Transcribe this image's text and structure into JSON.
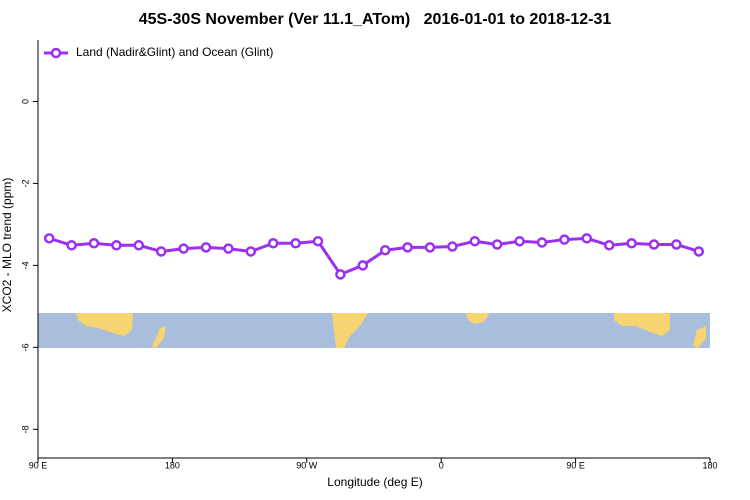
{
  "chart_data": {
    "type": "line",
    "title": "45S-30S November (Ver 11.1_ATom)   2016-01-01 to 2018-12-31",
    "xlabel": "Longitude (deg E)",
    "ylabel": "XCO2 - MLO trend (ppm)",
    "x": [
      97.5,
      112.5,
      127.5,
      142.5,
      157.5,
      172.5,
      187.5,
      202.5,
      217.5,
      232.5,
      247.5,
      262.5,
      277.5,
      292.5,
      307.5,
      322.5,
      337.5,
      352.5,
      367.5,
      382.5,
      397.5,
      412.5,
      427.5,
      442.5,
      457.5,
      472.5,
      487.5,
      502.5,
      517.5,
      532.5
    ],
    "series": [
      {
        "name": "Land (Nadir&Glint) and Ocean (Glint)",
        "color": "#9b30f0",
        "values": [
          -3.34,
          -3.51,
          -3.46,
          -3.51,
          -3.51,
          -3.66,
          -3.59,
          -3.56,
          -3.59,
          -3.66,
          -3.46,
          -3.46,
          -3.41,
          -4.22,
          -4.0,
          -3.63,
          -3.56,
          -3.56,
          -3.54,
          -3.41,
          -3.49,
          -3.41,
          -3.44,
          -3.37,
          -3.34,
          -3.51,
          -3.46,
          -3.49,
          -3.49,
          -3.66
        ]
      }
    ],
    "xlim": [
      90,
      540
    ],
    "xticks": [
      {
        "value": 90,
        "label": "90 E"
      },
      180,
      {
        "value": 270,
        "label": "90 W"
      },
      {
        "value": 360,
        "label": "0"
      },
      {
        "value": 450,
        "label": "90 E"
      },
      {
        "value": 540,
        "label": "180"
      }
    ],
    "ylim": [
      -8.7,
      1.5
    ],
    "yticks": [
      0,
      -2,
      -4,
      -6,
      -8
    ],
    "grid": false,
    "legend": "top-left"
  }
}
